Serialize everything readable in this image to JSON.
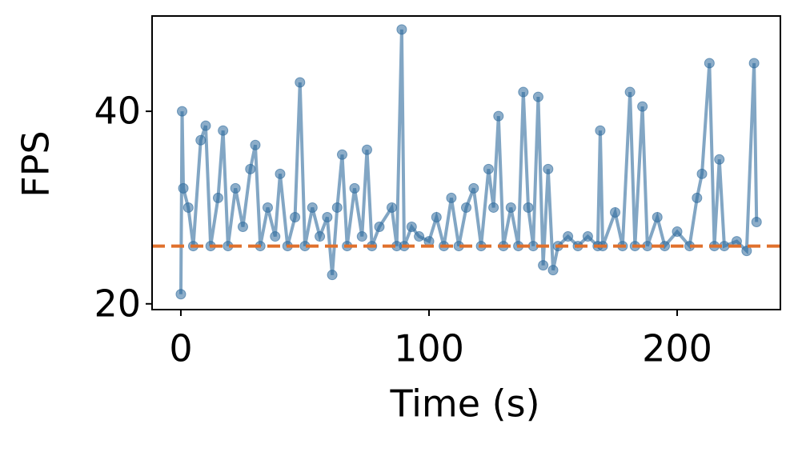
{
  "chart_data": {
    "type": "line",
    "xlabel": "Time (s)",
    "ylabel": "FPS",
    "x": [
      0,
      0.5,
      1,
      3,
      5,
      8,
      10,
      12,
      15,
      17,
      19,
      22,
      25,
      28,
      30,
      32,
      35,
      38,
      40,
      43,
      46,
      48,
      50,
      53,
      56,
      59,
      61,
      63,
      65,
      67,
      70,
      73,
      75,
      77,
      80,
      85,
      87,
      89,
      90,
      93,
      96,
      100,
      103,
      106,
      109,
      112,
      115,
      118,
      121,
      124,
      126,
      128,
      130,
      133,
      136,
      138,
      140,
      142,
      144,
      146,
      148,
      150,
      152,
      156,
      160,
      164,
      168,
      169,
      170,
      175,
      178,
      181,
      183,
      186,
      188,
      192,
      195,
      200,
      205,
      208,
      210,
      213,
      215,
      217,
      219,
      224,
      228,
      231,
      232
    ],
    "series": [
      {
        "color": "#2e6a9c",
        "values": [
          21,
          40,
          32,
          30,
          26,
          37,
          38.5,
          26,
          31,
          38,
          26,
          32,
          28,
          34,
          36.5,
          26,
          30,
          27,
          33.5,
          26,
          29,
          43,
          26,
          30,
          27,
          29,
          23,
          30,
          35.5,
          26,
          32,
          27,
          36,
          26,
          28,
          30,
          26,
          48.5,
          26,
          28,
          27,
          26.5,
          29,
          26,
          31,
          26,
          30,
          32,
          26,
          34,
          30,
          39.5,
          26,
          30,
          26,
          42,
          30,
          26,
          41.5,
          24,
          34,
          23.5,
          26,
          27,
          26,
          27,
          26,
          38,
          26,
          29.5,
          26,
          42,
          26,
          40.5,
          26,
          29,
          26,
          27.5,
          26,
          31,
          33.5,
          45,
          26,
          35,
          26,
          26.5,
          25.5,
          45,
          28.5
        ]
      }
    ],
    "hline": {
      "value": 26,
      "color": "#e0702c"
    },
    "xlim": [
      -11.6,
      241.6
    ],
    "xticks": [
      0,
      100,
      200
    ],
    "ylim": [
      19.4,
      49.9
    ],
    "yticks": [
      20,
      40
    ]
  }
}
